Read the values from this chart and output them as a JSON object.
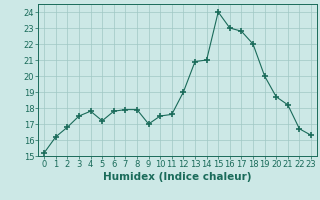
{
  "x": [
    0,
    1,
    2,
    3,
    4,
    5,
    6,
    7,
    8,
    9,
    10,
    11,
    12,
    13,
    14,
    15,
    16,
    17,
    18,
    19,
    20,
    21,
    22,
    23
  ],
  "y": [
    15.2,
    16.2,
    16.8,
    17.5,
    17.8,
    17.2,
    17.8,
    17.9,
    17.9,
    17.0,
    17.5,
    17.6,
    19.0,
    20.9,
    21.0,
    24.0,
    23.0,
    22.8,
    22.0,
    20.0,
    18.7,
    18.2,
    16.7,
    16.3
  ],
  "line_color": "#1a6b5a",
  "marker": "+",
  "marker_size": 4,
  "bg_color": "#cce8e6",
  "grid_color": "#a0c8c4",
  "xlabel": "Humidex (Indice chaleur)",
  "ylim": [
    15,
    24.5
  ],
  "xlim": [
    -0.5,
    23.5
  ],
  "yticks": [
    15,
    16,
    17,
    18,
    19,
    20,
    21,
    22,
    23,
    24
  ],
  "xticks": [
    0,
    1,
    2,
    3,
    4,
    5,
    6,
    7,
    8,
    9,
    10,
    11,
    12,
    13,
    14,
    15,
    16,
    17,
    18,
    19,
    20,
    21,
    22,
    23
  ],
  "tick_color": "#1a6b5a",
  "label_fontsize": 7.5,
  "tick_fontsize": 6.0
}
